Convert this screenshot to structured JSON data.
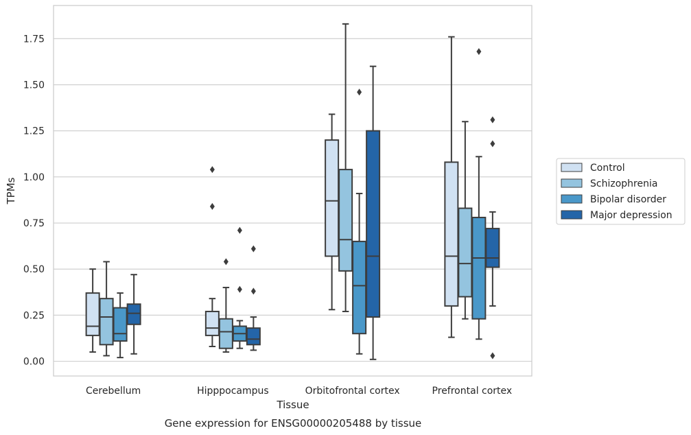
{
  "chart_data": {
    "type": "boxplot",
    "title": "",
    "caption": "Gene expression for ENSG00000205488 by tissue",
    "xlabel": "Tissue",
    "ylabel": "TPMs",
    "ylim": [
      -0.08,
      1.93
    ],
    "yticks": [
      "0.00",
      "0.25",
      "0.50",
      "0.75",
      "1.00",
      "1.25",
      "1.50",
      "1.75"
    ],
    "grid": "horizontal",
    "legend_position": "right",
    "categories": [
      "Cerebellum",
      "Hipppocampus",
      "Orbitofrontal cortex",
      "Prefrontal cortex"
    ],
    "series": [
      {
        "name": "Control",
        "color": "#d0e1f2",
        "boxes": [
          {
            "whislo": 0.05,
            "q1": 0.14,
            "med": 0.19,
            "q3": 0.37,
            "whishi": 0.5,
            "fliers": []
          },
          {
            "whislo": 0.08,
            "q1": 0.14,
            "med": 0.18,
            "q3": 0.27,
            "whishi": 0.34,
            "fliers": [
              0.84,
              1.04
            ]
          },
          {
            "whislo": 0.28,
            "q1": 0.57,
            "med": 0.87,
            "q3": 1.2,
            "whishi": 1.34,
            "fliers": []
          },
          {
            "whislo": 0.13,
            "q1": 0.3,
            "med": 0.57,
            "q3": 1.08,
            "whishi": 1.76,
            "fliers": []
          }
        ]
      },
      {
        "name": "Schizophrenia",
        "color": "#94c4df",
        "boxes": [
          {
            "whislo": 0.03,
            "q1": 0.09,
            "med": 0.24,
            "q3": 0.34,
            "whishi": 0.54,
            "fliers": []
          },
          {
            "whislo": 0.05,
            "q1": 0.07,
            "med": 0.16,
            "q3": 0.23,
            "whishi": 0.4,
            "fliers": [
              0.54
            ]
          },
          {
            "whislo": 0.27,
            "q1": 0.49,
            "med": 0.66,
            "q3": 1.04,
            "whishi": 1.83,
            "fliers": []
          },
          {
            "whislo": 0.23,
            "q1": 0.35,
            "med": 0.53,
            "q3": 0.83,
            "whishi": 1.3,
            "fliers": []
          }
        ]
      },
      {
        "name": "Bipolar disorder",
        "color": "#4a98c9",
        "boxes": [
          {
            "whislo": 0.02,
            "q1": 0.11,
            "med": 0.15,
            "q3": 0.29,
            "whishi": 0.37,
            "fliers": []
          },
          {
            "whislo": 0.07,
            "q1": 0.11,
            "med": 0.15,
            "q3": 0.19,
            "whishi": 0.22,
            "fliers": [
              0.39,
              0.71
            ]
          },
          {
            "whislo": 0.04,
            "q1": 0.15,
            "med": 0.41,
            "q3": 0.65,
            "whishi": 0.91,
            "fliers": [
              1.46
            ]
          },
          {
            "whislo": 0.12,
            "q1": 0.23,
            "med": 0.56,
            "q3": 0.78,
            "whishi": 1.11,
            "fliers": [
              1.68
            ]
          }
        ]
      },
      {
        "name": "Major depression",
        "color": "#2465a8",
        "boxes": [
          {
            "whislo": 0.04,
            "q1": 0.2,
            "med": 0.26,
            "q3": 0.31,
            "whishi": 0.47,
            "fliers": []
          },
          {
            "whislo": 0.06,
            "q1": 0.09,
            "med": 0.12,
            "q3": 0.18,
            "whishi": 0.24,
            "fliers": [
              0.38,
              0.61
            ]
          },
          {
            "whislo": 0.01,
            "q1": 0.24,
            "med": 0.57,
            "q3": 1.25,
            "whishi": 1.6,
            "fliers": []
          },
          {
            "whislo": 0.3,
            "q1": 0.51,
            "med": 0.56,
            "q3": 0.72,
            "whishi": 0.81,
            "fliers": [
              0.03,
              1.18,
              1.31
            ]
          }
        ]
      }
    ]
  }
}
